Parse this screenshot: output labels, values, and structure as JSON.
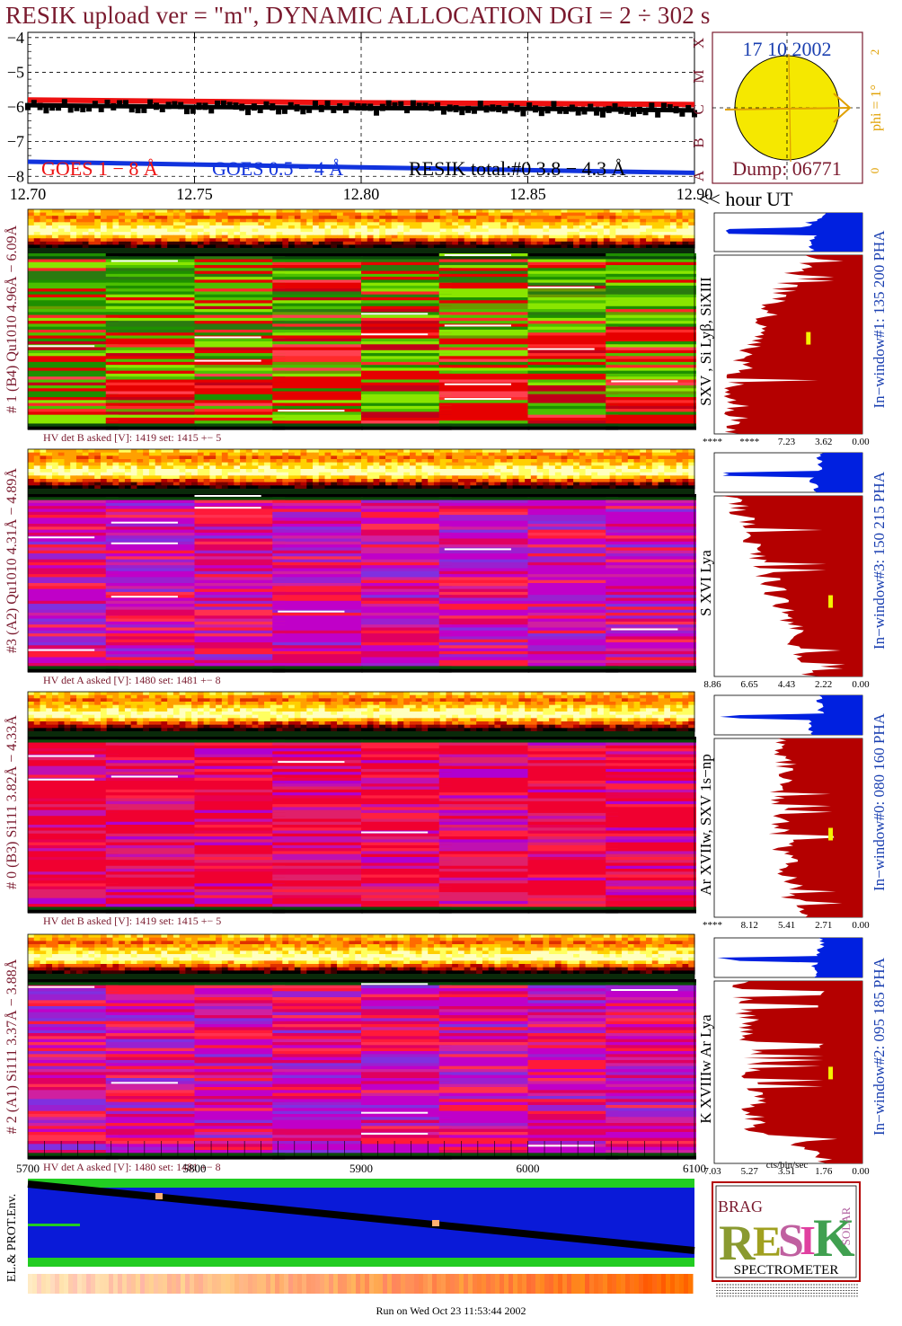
{
  "title": "RESIK upload ver = \"m\", DYNAMIC ALLOCATION  DGI =   2 ÷ 302 s",
  "colors": {
    "title": "#7a1a2e",
    "goes1": "#ee1111",
    "goes05": "#1133dd",
    "resik_total": "#000000",
    "date_blue": "#1a3fb0",
    "phi_orange": "#e0a000",
    "sun_fill": "#f5e800",
    "dark_red": "#b40000",
    "hist_blue": "#0020e0",
    "bar_yellow": "#f4f000"
  },
  "chart_data": [
    {
      "type": "line",
      "name": "lightcurves",
      "xlim": [
        12.7,
        12.9
      ],
      "ylim": [
        -8.2,
        -3.85
      ],
      "x_ticks": [
        "12.70",
        "12.75",
        "12.80",
        "12.85",
        "12.90"
      ],
      "x_tick_values": [
        12.7,
        12.75,
        12.8,
        12.85,
        12.9
      ],
      "x_unit_label": "<< hour UT",
      "y_ticks": [
        "−4",
        "−5",
        "−6",
        "−7",
        "−8"
      ],
      "y_tick_values": [
        -4,
        -5,
        -6,
        -7,
        -8
      ],
      "grid": true,
      "series": [
        {
          "name": "GOES 1 − 8 Å",
          "color": "#ee1111",
          "x": [
            12.7,
            12.75,
            12.8,
            12.85,
            12.9
          ],
          "values": [
            -5.8,
            -5.84,
            -5.88,
            -5.9,
            -5.93
          ]
        },
        {
          "name": "GOES 0.5 − 4 Å",
          "color": "#1133dd",
          "x": [
            12.7,
            12.75,
            12.8,
            12.85,
            12.9
          ],
          "values": [
            -7.58,
            -7.66,
            -7.74,
            -7.82,
            -7.9
          ]
        },
        {
          "name": "RESIK total:#0  3.8 − 4.3 Å",
          "color": "#000000",
          "x": [
            12.7,
            12.75,
            12.8,
            12.85,
            12.9
          ],
          "values": [
            -5.95,
            -6.0,
            -6.03,
            -6.05,
            -6.1
          ]
        }
      ],
      "right_axis_letters": [
        "A",
        "B",
        "C",
        "M",
        "X"
      ]
    },
    {
      "type": "scatter",
      "name": "sun_panel",
      "date": "17 10 2002",
      "dump": "Dump: 06771",
      "phi_label": "phi =  1°",
      "phi_scale": [
        "0",
        "1°",
        "2"
      ]
    },
    {
      "type": "heatmap",
      "name": "spectrograms",
      "panels": [
        {
          "label": "# 1 (B4) Qu1010 4.96Å − 6.09Å",
          "hv": "HV det B asked [V]:  1419 set:  1415  +−    5",
          "lines": "SXV , Si Lyβ, SiXIII",
          "window": "In−window#1:  135 200 PHA",
          "hist_ticks": [
            "****",
            "****",
            "7.23",
            "3.62",
            "0.00"
          ],
          "hist_tick_values": [
            14.46,
            10.85,
            7.23,
            3.62,
            0.0
          ],
          "bar_frac_x": 0.62,
          "bar_frac_y": 0.43,
          "palette": "green"
        },
        {
          "label": "#3 (A2) Qu1010  4.31Å − 4.89Å",
          "hv": "HV det A asked [V]:  1480 set:  1481  +−    8",
          "lines": "S XVI Lya",
          "window": "In−window#3:  150 215 PHA",
          "hist_ticks": [
            "8.86",
            "6.65",
            "4.43",
            "2.22",
            "0.00"
          ],
          "hist_tick_values": [
            8.86,
            6.65,
            4.43,
            2.22,
            0.0
          ],
          "bar_frac_x": 0.77,
          "bar_frac_y": 0.55,
          "palette": "purple"
        },
        {
          "label": "# 0 (B3) Si111  3.82Å − 4.33Å",
          "hv": "HV det B asked [V]:  1419 set:  1415  +−    5",
          "lines": "Ar XVIIw, SXV 1s−np",
          "window": "In−window#0:  080 160 PHA",
          "hist_ticks": [
            "****",
            "8.12",
            "5.41",
            "2.71",
            "0.00"
          ],
          "hist_tick_values": [
            10.83,
            8.12,
            5.41,
            2.71,
            0.0
          ],
          "bar_frac_x": 0.77,
          "bar_frac_y": 0.5,
          "palette": "red"
        },
        {
          "label": "# 2 (A1) Si111  3.37Å − 3.88Å",
          "hv": "HV det A asked [V]:  1480 set:  1481  +−    8",
          "lines": "K XVIIIw   Ar Lya",
          "window": "In−window#2:  095 185 PHA",
          "hist_ticks": [
            "7.03",
            "5.27",
            "3.51",
            "1.76",
            "0.00"
          ],
          "hist_tick_values": [
            7.03,
            5.27,
            3.51,
            1.76,
            0.0
          ],
          "bar_frac_x": 0.77,
          "bar_frac_y": 0.47,
          "palette": "purple"
        }
      ],
      "hist_xlabel": "cts/bin/sec"
    },
    {
      "type": "line",
      "name": "orbit",
      "xlim": [
        5700,
        6100
      ],
      "x_ticks": [
        "5700",
        "5800",
        "5900",
        "6000",
        "6100"
      ],
      "x_tick_values": [
        5700,
        5800,
        5900,
        6000,
        6100
      ],
      "ylabel": "EL.& PROT.Env."
    }
  ],
  "logo": {
    "line1": "RESIK",
    "small": "BRAG",
    "side": "SOLAR",
    "bottom": "SPECTROMETER"
  },
  "footer": "Run on Wed Oct 23 11:53:44 2002"
}
